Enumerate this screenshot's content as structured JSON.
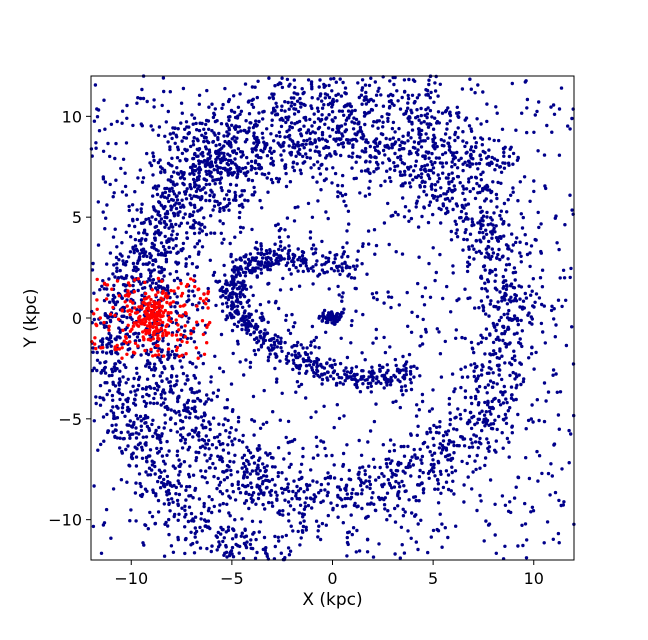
{
  "chart_data": {
    "type": "scatter",
    "xlabel": "X (kpc)",
    "ylabel": "Y (kpc)",
    "xlim": [
      -12,
      12
    ],
    "ylim": [
      -12,
      12
    ],
    "xticks": [
      -10,
      -5,
      0,
      5,
      10
    ],
    "yticks": [
      -10,
      -5,
      0,
      5,
      10
    ],
    "grid": false,
    "legend": "none",
    "colors": {
      "main": "#00008b",
      "selected": "#ff0000"
    },
    "series": [
      {
        "color_key": "main",
        "components": [
          {
            "kind": "central-bar",
            "points": 60,
            "x": 0,
            "y": 0,
            "sx": 0.35,
            "sy": 0.18
          },
          {
            "kind": "inner-arm",
            "points": 650,
            "ellipse_a": 5.2,
            "ellipse_b": 2.6,
            "tilt_deg": -20,
            "arc_from_deg": 90,
            "arc_to_deg": 330,
            "scatter": 0.35
          },
          {
            "kind": "ring",
            "points": 1900,
            "radius": 8.8,
            "scatter": 0.9
          },
          {
            "kind": "outer-arm",
            "points": 800,
            "radius_start": 9.5,
            "radius_end": 12.5,
            "angle_from_deg": 120,
            "angle_to_deg": 260,
            "scatter": 0.8
          },
          {
            "kind": "upper-arm",
            "points": 600,
            "radius": 10.8,
            "angle_from_deg": 40,
            "angle_to_deg": 140,
            "scatter": 0.9
          },
          {
            "kind": "field",
            "points": 1200,
            "x_range": [
              -12,
              12
            ],
            "y_range": [
              -12,
              12
            ]
          }
        ]
      },
      {
        "color_key": "selected",
        "region": {
          "x": [
            -12,
            -6
          ],
          "y": [
            -2,
            2
          ]
        },
        "components": [
          {
            "kind": "cluster",
            "points": 150,
            "x": -8.9,
            "y": 0,
            "sx": 0.45,
            "sy": 0.6
          },
          {
            "kind": "box-field",
            "points": 170
          }
        ]
      }
    ]
  }
}
